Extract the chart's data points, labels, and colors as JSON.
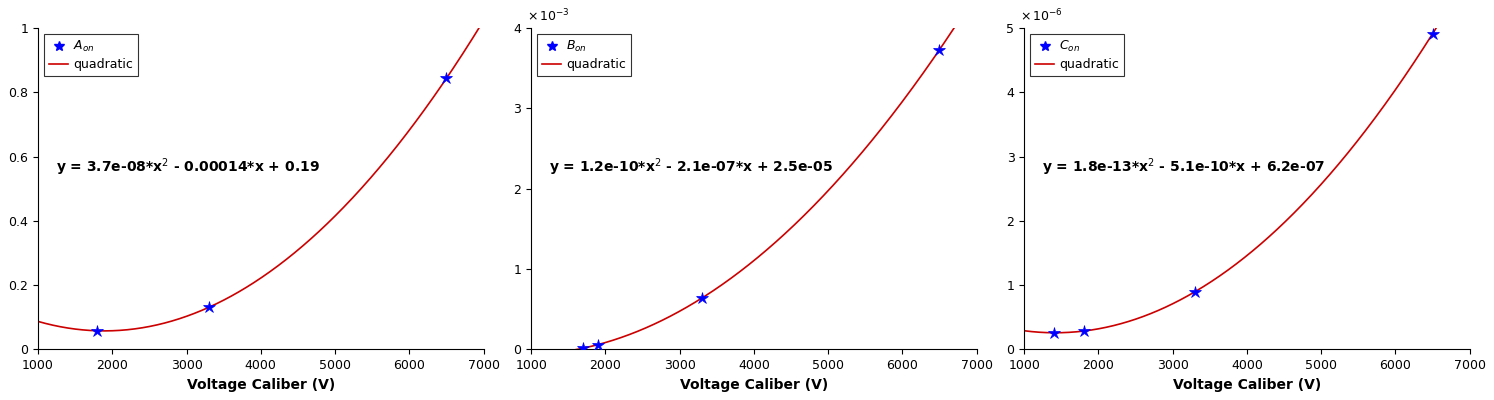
{
  "subplots": [
    {
      "label": "A",
      "subscript": "on",
      "eq_text": "y = 3.7e-08*x",
      "eq_sup": "2",
      "eq_rest": " - 0.00014*x + 0.19",
      "coeffs": [
        3.7e-08,
        -0.00014,
        0.19
      ],
      "data_x": [
        1800,
        3300,
        6500
      ],
      "ylim": [
        0,
        1.0
      ],
      "yticks": [
        0,
        0.2,
        0.4,
        0.6,
        0.8,
        1.0
      ],
      "ytick_labels": [
        "0",
        "0.2",
        "0.4",
        "0.6",
        "0.8",
        "1"
      ],
      "ylabel_exp": null
    },
    {
      "label": "B",
      "subscript": "on",
      "eq_text": "y = 1.2e-10*x",
      "eq_sup": "2",
      "eq_rest": " - 2.1e-07*x + 2.5e-05",
      "coeffs": [
        1.2e-10,
        -2.1e-07,
        2.5e-05
      ],
      "data_x": [
        1700,
        1900,
        3300,
        6500
      ],
      "ylim": [
        0,
        0.004
      ],
      "yticks": [
        0,
        0.001,
        0.002,
        0.003,
        0.004
      ],
      "ytick_labels": [
        "0",
        "1",
        "2",
        "3",
        "4"
      ],
      "ylabel_exp": -3
    },
    {
      "label": "C",
      "subscript": "on",
      "eq_text": "y = 1.8e-13*x",
      "eq_sup": "2",
      "eq_rest": " - 5.1e-10*x + 6.2e-07",
      "coeffs": [
        1.8e-13,
        -5.1e-10,
        6.2e-07
      ],
      "data_x": [
        1400,
        1800,
        3300,
        6500
      ],
      "ylim": [
        0,
        5e-06
      ],
      "yticks": [
        0,
        1e-06,
        2e-06,
        3e-06,
        4e-06,
        5e-06
      ],
      "ytick_labels": [
        "0",
        "1",
        "2",
        "3",
        "4",
        "5"
      ],
      "ylabel_exp": -6
    }
  ],
  "xlim": [
    1000,
    7000
  ],
  "xticks": [
    1000,
    2000,
    3000,
    4000,
    5000,
    6000,
    7000
  ],
  "xtick_labels": [
    "1000",
    "2000",
    "3000",
    "4000",
    "5000",
    "6000",
    "7000"
  ],
  "xlabel": "Voltage Caliber (V)",
  "curve_color": "#cc0000",
  "point_color": "blue",
  "point_size": 9,
  "bg_color": "white",
  "eq_fontsize": 10,
  "legend_fontsize": 9,
  "tick_fontsize": 9,
  "xlabel_fontsize": 10
}
